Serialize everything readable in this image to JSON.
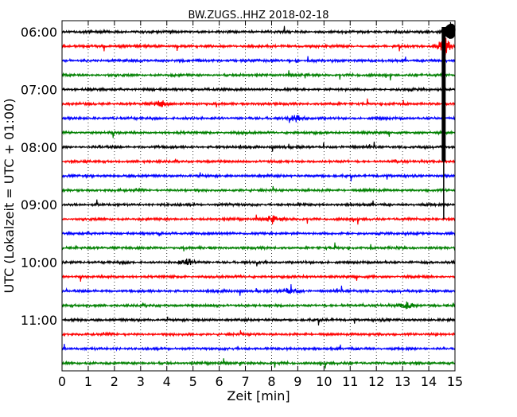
{
  "chart_data": {
    "type": "line",
    "title": "BW.ZUGS..HHZ 2018-02-18",
    "xlabel": "Zeit  [min]",
    "ylabel": "UTC (Lokalzeit = UTC + 01:00)",
    "xlim": [
      0,
      15
    ],
    "x_ticks": [
      "0",
      "1",
      "2",
      "3",
      "4",
      "5",
      "6",
      "7",
      "8",
      "9",
      "10",
      "11",
      "12",
      "13",
      "14",
      "15"
    ],
    "y_ticks": [
      {
        "label": "06:00",
        "row": 0
      },
      {
        "label": "07:00",
        "row": 4
      },
      {
        "label": "08:00",
        "row": 8
      },
      {
        "label": "09:00",
        "row": 12
      },
      {
        "label": "10:00",
        "row": 16
      },
      {
        "label": "11:00",
        "row": 20
      }
    ],
    "grid": "vertical-dotted",
    "colors": [
      "#000000",
      "#ff0000",
      "#0000ff",
      "#008000"
    ],
    "row_interval_min": 15,
    "rows": 24,
    "events": [
      {
        "row": 0,
        "minute": 14.8,
        "amplitude": "large",
        "note": "big event"
      },
      {
        "row": 1,
        "minute": 14.6,
        "amplitude": "large"
      },
      {
        "row": 5,
        "minute": 3.8,
        "amplitude": "medium"
      },
      {
        "row": 6,
        "minute": 8.9,
        "amplitude": "medium"
      },
      {
        "row": 13,
        "minute": 8.0,
        "amplitude": "medium"
      },
      {
        "row": 16,
        "minute": 4.8,
        "amplitude": "medium"
      },
      {
        "row": 18,
        "minute": 8.7,
        "amplitude": "medium"
      },
      {
        "row": 19,
        "minute": 13.2,
        "amplitude": "medium"
      }
    ]
  }
}
